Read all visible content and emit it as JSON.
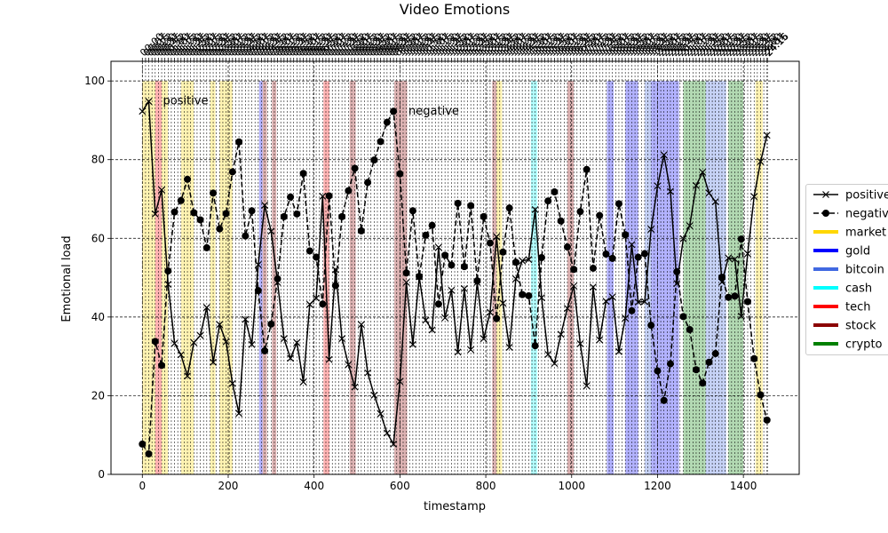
{
  "chart_data": {
    "type": "line",
    "title": "Video Emotions",
    "xlabel": "timestamp",
    "ylabel": "Emotional load",
    "xlim": [
      -73,
      1530
    ],
    "ylim": [
      0,
      105
    ],
    "x_ticks": [
      0,
      200,
      400,
      600,
      800,
      1000,
      1200,
      1400
    ],
    "y_ticks": [
      0,
      20,
      40,
      60,
      80,
      100
    ],
    "grid": true,
    "legend_position": "right",
    "top_tick_labels": [
      "00:00",
      "00:07",
      "00:15",
      "00:22",
      "00:30",
      "00:37",
      "00:45",
      "00:52",
      "01:00",
      "01:07",
      "01:15",
      "01:22",
      "01:30",
      "01:37",
      "01:45",
      "01:52",
      "02:00",
      "02:07",
      "02:15",
      "02:22",
      "02:30",
      "02:37",
      "02:45",
      "02:52",
      "03:00",
      "03:07",
      "03:15",
      "03:22",
      "03:30",
      "03:37",
      "03:45",
      "03:52",
      "04:00",
      "04:07",
      "04:15",
      "04:22",
      "04:30",
      "04:37",
      "04:45",
      "04:52",
      "05:00",
      "05:07",
      "05:15",
      "05:22",
      "05:30",
      "05:37",
      "05:45",
      "05:52",
      "06:00",
      "06:07",
      "06:15",
      "06:22",
      "06:30",
      "06:37",
      "06:45",
      "06:52",
      "07:00",
      "07:07",
      "07:15",
      "07:22",
      "07:30",
      "07:37",
      "07:45",
      "07:52",
      "08:00",
      "08:07",
      "08:15",
      "08:22",
      "08:30",
      "08:37",
      "08:45",
      "08:52",
      "09:00",
      "09:07",
      "09:15",
      "09:22",
      "09:30",
      "09:37",
      "09:45",
      "09:52",
      "10:00",
      "10:07",
      "10:15",
      "10:22",
      "10:30",
      "10:37",
      "10:45",
      "10:52",
      "11:00",
      "11:07",
      "11:15",
      "11:22",
      "11:30",
      "11:37",
      "11:45",
      "11:52",
      "12:00",
      "12:07",
      "12:15",
      "12:22",
      "12:30",
      "12:37",
      "12:45",
      "12:52",
      "13:00",
      "13:07",
      "13:15",
      "13:22",
      "13:30",
      "13:37",
      "13:45",
      "13:52",
      "14:00",
      "14:07",
      "14:15",
      "14:22",
      "14:30",
      "14:37",
      "14:45",
      "14:52",
      "15:00",
      "15:07",
      "15:15",
      "15:22",
      "15:30",
      "15:37",
      "15:45",
      "15:52",
      "16:00",
      "16:07",
      "16:15",
      "16:22",
      "16:30",
      "16:37",
      "16:45",
      "16:52",
      "17:00",
      "17:07",
      "17:15",
      "17:22",
      "17:30",
      "17:37",
      "17:45",
      "17:52",
      "18:00",
      "18:07",
      "18:15",
      "18:22",
      "18:30",
      "18:37",
      "18:45",
      "18:52",
      "19:00",
      "19:07",
      "19:15",
      "19:22",
      "19:30",
      "19:37",
      "19:45",
      "19:52",
      "20:00",
      "20:07",
      "20:15",
      "20:22",
      "20:30",
      "20:37",
      "20:45",
      "20:52",
      "21:00",
      "21:07",
      "21:15",
      "21:22",
      "21:30",
      "21:37",
      "21:45",
      "21:52",
      "22:00",
      "22:07",
      "22:15",
      "22:22",
      "22:30",
      "22:37",
      "22:45",
      "22:52",
      "23:00",
      "23:07",
      "23:15",
      "23:22",
      "23:30",
      "23:37",
      "23:45",
      "23:52",
      "24:00",
      "24:07",
      "24:15",
      "24:16"
    ],
    "x": [
      0,
      15,
      30,
      45,
      60,
      75,
      90,
      105,
      120,
      135,
      150,
      165,
      180,
      195,
      210,
      225,
      240,
      255,
      270,
      285,
      300,
      315,
      330,
      345,
      360,
      375,
      390,
      405,
      420,
      435,
      450,
      465,
      480,
      495,
      510,
      525,
      540,
      555,
      570,
      585,
      600,
      615,
      630,
      645,
      660,
      675,
      690,
      705,
      720,
      735,
      750,
      765,
      780,
      795,
      810,
      825,
      840,
      855,
      870,
      885,
      900,
      915,
      930,
      945,
      960,
      975,
      990,
      1005,
      1020,
      1035,
      1050,
      1065,
      1080,
      1095,
      1110,
      1125,
      1140,
      1155,
      1170,
      1185,
      1200,
      1215,
      1230,
      1245,
      1260,
      1275,
      1290,
      1305,
      1320,
      1335,
      1350,
      1365,
      1380,
      1395,
      1410,
      1425,
      1440,
      1455
    ],
    "series": [
      {
        "name": "positive",
        "style": "solid",
        "marker": "x",
        "values": [
          92.3,
          94.8,
          66.2,
          72.3,
          48.3,
          33.3,
          30.4,
          25.0,
          33.5,
          35.3,
          42.4,
          28.5,
          38.1,
          33.7,
          23.1,
          15.5,
          39.4,
          33.0,
          53.3,
          68.4,
          61.8,
          48.8,
          34.5,
          29.5,
          33.5,
          23.5,
          43.2,
          44.8,
          70.7,
          29.2,
          52.0,
          34.5,
          27.9,
          22.2,
          38.1,
          25.8,
          20.1,
          15.4,
          10.5,
          7.7,
          23.6,
          48.8,
          33.0,
          50.2,
          39.2,
          36.7,
          57.7,
          39.8,
          46.8,
          31.1,
          47.2,
          31.7,
          48.8,
          34.5,
          41.2,
          60.4,
          43.5,
          32.3,
          49.7,
          54.3,
          54.6,
          67.3,
          44.9,
          30.5,
          28.2,
          35.6,
          42.2,
          47.9,
          33.2,
          22.5,
          47.6,
          34.2,
          44.0,
          45.1,
          31.2,
          39.7,
          58.4,
          43.8,
          43.9,
          62.3,
          73.3,
          81.2,
          71.9,
          48.5,
          59.9,
          63.2,
          73.4,
          76.8,
          71.5,
          69.3,
          48.9,
          55.0,
          54.7,
          40.2,
          56.1,
          70.6,
          79.5,
          86.2
        ]
      },
      {
        "name": "negative",
        "style": "dashed",
        "marker": "o",
        "values": [
          7.7,
          5.2,
          33.8,
          27.7,
          51.7,
          66.7,
          69.6,
          75.0,
          66.5,
          64.7,
          57.6,
          71.5,
          62.4,
          66.3,
          76.9,
          84.5,
          60.6,
          67.0,
          46.7,
          31.4,
          38.2,
          49.7,
          65.5,
          70.5,
          66.2,
          76.5,
          56.8,
          55.2,
          43.3,
          70.8,
          48.0,
          65.5,
          72.1,
          77.8,
          61.9,
          74.2,
          79.9,
          84.6,
          89.5,
          92.3,
          76.4,
          51.2,
          67.0,
          50.3,
          60.8,
          63.3,
          43.3,
          55.7,
          53.2,
          68.9,
          52.8,
          68.3,
          49.2,
          65.5,
          58.8,
          39.6,
          56.5,
          67.7,
          53.9,
          45.7,
          45.4,
          32.7,
          55.1,
          69.5,
          71.8,
          64.4,
          57.8,
          52.1,
          66.8,
          77.5,
          52.4,
          65.8,
          56.0,
          54.9,
          68.8,
          60.9,
          41.6,
          55.2,
          56.1,
          37.9,
          26.3,
          18.8,
          28.1,
          51.5,
          40.1,
          36.8,
          26.6,
          23.2,
          28.5,
          30.7,
          50.1,
          45.0,
          45.3,
          59.8,
          43.9,
          29.4,
          20.2,
          13.8
        ]
      }
    ],
    "highlight_categories": [
      {
        "name": "market",
        "color": "#FFD700"
      },
      {
        "name": "gold",
        "color": "#0000FF"
      },
      {
        "name": "bitcoin",
        "color": "#4169E1"
      },
      {
        "name": "cash",
        "color": "#00FFFF"
      },
      {
        "name": "tech",
        "color": "#FF0000"
      },
      {
        "name": "stock",
        "color": "#8B0000"
      },
      {
        "name": "crypto",
        "color": "#008000"
      }
    ],
    "highlight_spans": [
      {
        "category": "market",
        "start": 0,
        "end": 30
      },
      {
        "category": "tech",
        "start": 30,
        "end": 45
      },
      {
        "category": "market",
        "start": 45,
        "end": 60
      },
      {
        "category": "market",
        "start": 90,
        "end": 120
      },
      {
        "category": "market",
        "start": 158,
        "end": 170
      },
      {
        "category": "market",
        "start": 180,
        "end": 210
      },
      {
        "category": "gold",
        "start": 272,
        "end": 280
      },
      {
        "category": "stock",
        "start": 280,
        "end": 290
      },
      {
        "category": "stock",
        "start": 302,
        "end": 312
      },
      {
        "category": "tech",
        "start": 422,
        "end": 436
      },
      {
        "category": "stock",
        "start": 483,
        "end": 497
      },
      {
        "category": "stock",
        "start": 587,
        "end": 617
      },
      {
        "category": "stock",
        "start": 815,
        "end": 825
      },
      {
        "category": "market",
        "start": 825,
        "end": 838
      },
      {
        "category": "cash",
        "start": 905,
        "end": 920
      },
      {
        "category": "stock",
        "start": 990,
        "end": 1005
      },
      {
        "category": "gold",
        "start": 1082,
        "end": 1098
      },
      {
        "category": "gold",
        "start": 1125,
        "end": 1155
      },
      {
        "category": "bitcoin",
        "start": 1170,
        "end": 1185
      },
      {
        "category": "gold",
        "start": 1185,
        "end": 1250
      },
      {
        "category": "crypto",
        "start": 1260,
        "end": 1278
      },
      {
        "category": "crypto",
        "start": 1278,
        "end": 1312
      },
      {
        "category": "bitcoin",
        "start": 1312,
        "end": 1360
      },
      {
        "category": "crypto",
        "start": 1365,
        "end": 1400
      },
      {
        "category": "market",
        "start": 1428,
        "end": 1445
      }
    ],
    "annotations": [
      {
        "text": "positive",
        "x": 48,
        "y": 95
      },
      {
        "text": "negative",
        "x": 620,
        "y": 92.3
      }
    ]
  }
}
